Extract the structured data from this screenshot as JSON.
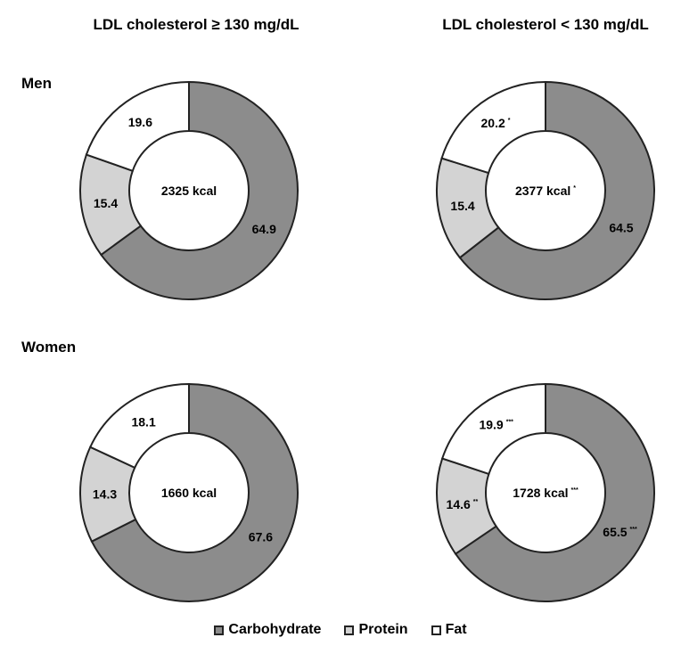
{
  "colors": {
    "carbohydrate": "#8c8c8c",
    "protein": "#d3d3d3",
    "fat": "#ffffff",
    "outline": "#222222"
  },
  "columns": [
    "LDL cholesterol ≥ 130 mg/dL",
    "LDL cholesterol < 130 mg/dL"
  ],
  "rows": [
    "Men",
    "Women"
  ],
  "legend": [
    "Carbohydrate",
    "Protein",
    "Fat"
  ],
  "chart_data": {
    "type": "pie",
    "variant": "donut",
    "series_names": [
      "Carbohydrate",
      "Protein",
      "Fat"
    ],
    "charts": [
      {
        "row": "Men",
        "column": "LDL cholesterol ≥ 130 mg/dL",
        "center": "2325 kcal",
        "center_mark": "",
        "slices": [
          {
            "name": "Carbohydrate",
            "value": 64.9,
            "label": "64.9",
            "mark": ""
          },
          {
            "name": "Protein",
            "value": 15.4,
            "label": "15.4",
            "mark": ""
          },
          {
            "name": "Fat",
            "value": 19.6,
            "label": "19.6",
            "mark": ""
          }
        ]
      },
      {
        "row": "Men",
        "column": "LDL cholesterol < 130 mg/dL",
        "center": "2377 kcal",
        "center_mark": "*",
        "slices": [
          {
            "name": "Carbohydrate",
            "value": 64.5,
            "label": "64.5",
            "mark": ""
          },
          {
            "name": "Protein",
            "value": 15.4,
            "label": "15.4",
            "mark": ""
          },
          {
            "name": "Fat",
            "value": 20.2,
            "label": "20.2",
            "mark": "*"
          }
        ]
      },
      {
        "row": "Women",
        "column": "LDL cholesterol ≥ 130 mg/dL",
        "center": "1660 kcal",
        "center_mark": "",
        "slices": [
          {
            "name": "Carbohydrate",
            "value": 67.6,
            "label": "67.6",
            "mark": ""
          },
          {
            "name": "Protein",
            "value": 14.3,
            "label": "14.3",
            "mark": ""
          },
          {
            "name": "Fat",
            "value": 18.1,
            "label": "18.1",
            "mark": ""
          }
        ]
      },
      {
        "row": "Women",
        "column": "LDL cholesterol < 130 mg/dL",
        "center": "1728 kcal",
        "center_mark": "***",
        "slices": [
          {
            "name": "Carbohydrate",
            "value": 65.5,
            "label": "65.5",
            "mark": "***"
          },
          {
            "name": "Protein",
            "value": 14.6,
            "label": "14.6",
            "mark": "**"
          },
          {
            "name": "Fat",
            "value": 19.9,
            "label": "19.9",
            "mark": "***"
          }
        ]
      }
    ]
  }
}
